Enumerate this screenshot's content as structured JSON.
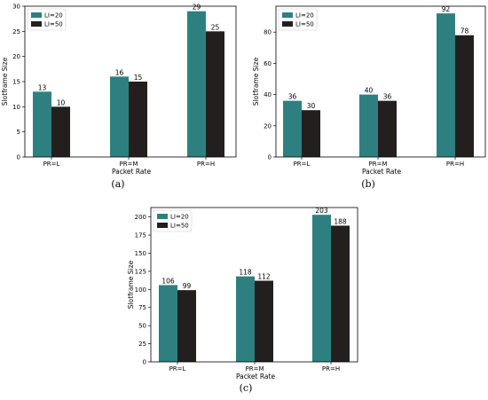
{
  "colors": {
    "li20": "#2e8080",
    "li50": "#231f1f"
  },
  "charts": [
    {
      "caption": "(a)",
      "chart_data": {
        "type": "bar",
        "categories": [
          "PR=L",
          "PR=M",
          "PR=H"
        ],
        "series": [
          {
            "name": "LI=20",
            "values": [
              13,
              16,
              29
            ]
          },
          {
            "name": "LI=50",
            "values": [
              10,
              15,
              25
            ]
          }
        ],
        "data_labels": [
          [
            "13",
            "16",
            "29"
          ],
          [
            "10",
            "15",
            "25"
          ]
        ],
        "xlabel": "Packet Rate",
        "ylabel": "Slotframe Size",
        "ylim": [
          0,
          30
        ],
        "yticks": [
          0,
          5,
          10,
          15,
          20,
          25,
          30
        ],
        "legend": "top-left",
        "grid": false
      }
    },
    {
      "caption": "(b)",
      "chart_data": {
        "type": "bar",
        "categories": [
          "PR=L",
          "PR=M",
          "PR=H"
        ],
        "series": [
          {
            "name": "LI=20",
            "values": [
              36,
              40,
              92
            ]
          },
          {
            "name": "LI=50",
            "values": [
              30,
              36,
              78
            ]
          }
        ],
        "data_labels": [
          [
            "36",
            "40",
            "92"
          ],
          [
            "30",
            "36",
            "78"
          ]
        ],
        "xlabel": "Packet Rate",
        "ylabel": "Slotframe Size",
        "ylim": [
          0,
          96.6
        ],
        "yticks": [
          0,
          20,
          40,
          60,
          80
        ],
        "legend": "top-left",
        "grid": false
      }
    },
    {
      "caption": "(c)",
      "chart_data": {
        "type": "bar",
        "categories": [
          "PR=L",
          "PR=M",
          "PR=H"
        ],
        "series": [
          {
            "name": "LI=20",
            "values": [
              106,
              118,
              203
            ]
          },
          {
            "name": "LI=50",
            "values": [
              99,
              112,
              188
            ]
          }
        ],
        "data_labels": [
          [
            "106",
            "118",
            "203"
          ],
          [
            "99",
            "112",
            "188"
          ]
        ],
        "xlabel": "Packet Rate",
        "ylabel": "Slotframe Size",
        "ylim": [
          0,
          213
        ],
        "yticks": [
          0,
          25,
          50,
          75,
          100,
          125,
          150,
          175,
          200
        ],
        "legend": "top-left",
        "grid": false
      }
    }
  ]
}
